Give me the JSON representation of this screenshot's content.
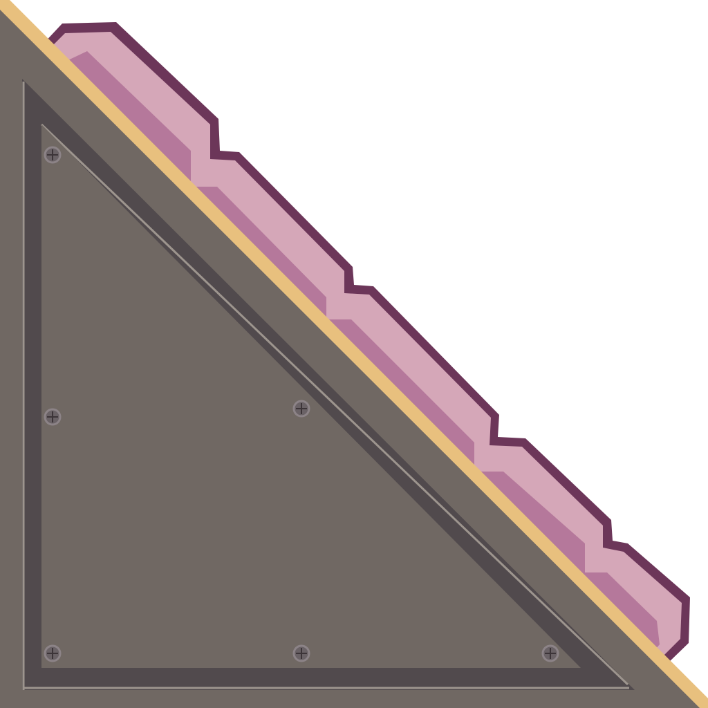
{
  "tile": {
    "kind": "slope-corner-tile",
    "orientation": "bottom-left",
    "colors": {
      "background": "#ffffff",
      "metal_base": "#706863",
      "metal_frame": "#514a4d",
      "metal_highlight": "#9d958e",
      "edge_trim": "#e8c07e",
      "crystal_outline": "#6c3659",
      "crystal_light": "#d5a7b8",
      "crystal_mid": "#b5789b",
      "bolt_fill": "#6a6266",
      "bolt_ring": "#8c8387",
      "bolt_cross": "#3c3438"
    },
    "bolts": [
      {
        "name": "bolt-top-left",
        "icon": "cross-bolt-icon"
      },
      {
        "name": "bolt-mid-left",
        "icon": "cross-bolt-icon"
      },
      {
        "name": "bolt-center",
        "icon": "cross-bolt-icon"
      },
      {
        "name": "bolt-bottom-left",
        "icon": "cross-bolt-icon"
      },
      {
        "name": "bolt-bottom-center",
        "icon": "cross-bolt-icon"
      },
      {
        "name": "bolt-bottom-right",
        "icon": "cross-bolt-icon"
      }
    ]
  }
}
